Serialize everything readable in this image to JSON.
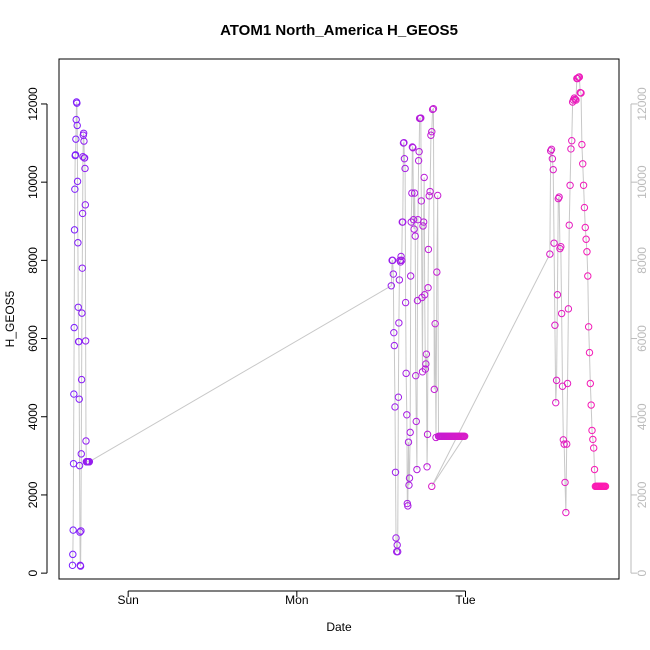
{
  "chart_data": {
    "type": "scatter",
    "title": "ATOM1 North_America H_GEOS5",
    "xlabel": "Date",
    "ylabel": "H_GEOS5",
    "x_ticks": [
      {
        "label": "Sun",
        "value": 0.0
      },
      {
        "label": "Mon",
        "value": 1.0
      },
      {
        "label": "Tue",
        "value": 2.0
      }
    ],
    "xlim": [
      -0.41,
      2.91
    ],
    "ylim": [
      -150,
      13150
    ],
    "y_ticks": [
      0,
      2000,
      4000,
      6000,
      8000,
      10000,
      12000
    ],
    "y_ticks_right": [
      0,
      2000,
      4000,
      6000,
      8000,
      10000,
      12000
    ],
    "grid": false,
    "line_color": "#c8c8c8",
    "color_start": "#7a1fff",
    "color_end": "#ff1ab0",
    "series": [
      {
        "x": [
          -0.33,
          -0.328,
          -0.326,
          -0.324,
          -0.322,
          -0.32,
          -0.318,
          -0.316,
          -0.314,
          -0.312,
          -0.31,
          -0.308,
          -0.306,
          -0.304,
          -0.302,
          -0.3,
          -0.298,
          -0.296,
          -0.294,
          -0.292,
          -0.29,
          -0.288,
          -0.286,
          -0.284,
          -0.282,
          -0.28,
          -0.278,
          -0.276,
          -0.274,
          -0.272,
          -0.27,
          -0.268,
          -0.266,
          -0.264,
          -0.262,
          -0.26,
          -0.258,
          -0.256,
          -0.254,
          -0.252,
          -0.25,
          -0.248,
          -0.246,
          -0.244,
          -0.242,
          -0.24,
          -0.238,
          -0.236,
          -0.234,
          -0.232,
          -0.23
        ],
        "y": [
          200,
          480,
          1100,
          2800,
          4580,
          6280,
          8780,
          9820,
          10680,
          10700,
          11100,
          11600,
          12050,
          12020,
          11450,
          10020,
          8450,
          6800,
          5920,
          5920,
          4450,
          2750,
          1050,
          200,
          180,
          1080,
          3050,
          4950,
          6650,
          7800,
          9200,
          10650,
          11200,
          11250,
          11050,
          10620,
          10620,
          10350,
          9420,
          5940,
          3380,
          2850,
          2850,
          2850,
          2850,
          2850,
          2850,
          2850,
          2850,
          2850,
          2850
        ]
      },
      {
        "x": [
          1.56,
          1.565,
          1.568,
          1.572,
          1.575,
          1.578,
          1.582,
          1.585,
          1.588,
          1.592,
          1.595,
          1.598,
          1.602,
          1.605,
          1.608,
          1.612,
          1.615,
          1.618,
          1.622,
          1.625,
          1.628,
          1.632,
          1.635,
          1.638,
          1.642,
          1.645,
          1.648,
          1.652,
          1.655,
          1.658,
          1.662,
          1.665,
          1.668,
          1.672,
          1.675,
          1.678,
          1.682,
          1.685,
          1.688,
          1.692,
          1.695,
          1.698,
          1.702,
          1.705,
          1.708,
          1.712,
          1.715,
          1.718,
          1.722,
          1.725,
          1.728,
          1.732,
          1.735,
          1.738,
          1.742,
          1.745,
          1.748,
          1.752,
          1.755,
          1.758,
          1.762,
          1.765,
          1.768,
          1.772,
          1.775,
          1.778
        ],
        "y": [
          7350,
          8000,
          8000,
          7650,
          6150,
          5820,
          4250,
          2580,
          900,
          550,
          720,
          550,
          4500,
          6400,
          7500,
          8000,
          7960,
          8100,
          8000,
          8980,
          8980,
          11000,
          11010,
          10600,
          10350,
          6920,
          5110,
          4050,
          1780,
          1720,
          3350,
          2250,
          2430,
          3600,
          7600,
          8980,
          9720,
          10900,
          10880,
          9040,
          8800,
          9720,
          8620,
          5050,
          3880,
          2650,
          6970,
          9040,
          10550,
          10780,
          11630,
          11630,
          11640,
          9520,
          7050,
          5150,
          8880,
          8980,
          10120,
          7120,
          5220,
          5350,
          5600,
          2720,
          3550,
          7300
        ]
      },
      {
        "x": [
          1.78,
          1.785,
          1.79,
          1.795,
          1.8,
          1.805,
          1.81,
          1.815,
          1.82,
          1.825,
          1.83,
          1.835,
          1.84,
          1.845,
          1.85,
          1.855,
          1.86,
          1.865,
          1.87,
          1.875,
          1.88,
          1.885,
          1.89,
          1.895,
          1.9,
          1.905,
          1.91,
          1.915,
          1.92,
          1.925,
          1.93,
          1.935,
          1.94,
          1.945,
          1.95,
          1.955,
          1.96,
          1.965,
          1.97,
          1.975,
          1.98,
          1.985,
          1.99,
          1.995
        ],
        "y": [
          8280,
          9650,
          9760,
          11200,
          11290,
          11860,
          11880,
          4700,
          6380,
          3470,
          7700,
          9660,
          3500,
          3500,
          3500,
          3500,
          3500,
          3500,
          3500,
          3500,
          3500,
          3500,
          3500,
          3500,
          3500,
          3500,
          3500,
          3500,
          3500,
          3500,
          3500,
          3500,
          3500,
          3500,
          3500,
          3500,
          3500,
          3500,
          3500,
          3500,
          3500,
          3500,
          3500,
          3500
        ]
      },
      {
        "x": [
          1.8,
          2.5,
          2.505,
          2.51,
          2.515,
          2.52,
          2.525,
          2.53,
          2.535,
          2.54,
          2.545,
          2.55,
          2.555,
          2.56,
          2.565,
          2.57,
          2.575,
          2.58,
          2.585,
          2.59,
          2.595,
          2.6,
          2.605,
          2.61,
          2.615,
          2.62,
          2.625,
          2.63,
          2.635,
          2.64,
          2.645,
          2.65,
          2.655,
          2.66,
          2.665,
          2.67,
          2.675,
          2.68,
          2.685,
          2.69,
          2.695,
          2.7,
          2.705,
          2.71,
          2.715,
          2.72,
          2.725,
          2.73,
          2.735,
          2.74,
          2.745,
          2.75,
          2.755,
          2.76,
          2.765,
          2.77,
          2.775,
          2.78,
          2.785,
          2.79,
          2.795,
          2.8,
          2.805,
          2.81,
          2.815,
          2.82,
          2.825,
          2.83
        ],
        "y": [
          2220,
          8160,
          10800,
          10840,
          10600,
          10320,
          8440,
          6340,
          4360,
          4930,
          7120,
          9580,
          9620,
          8300,
          8350,
          6640,
          4780,
          3410,
          3300,
          2320,
          1550,
          3300,
          4850,
          6760,
          8900,
          9920,
          10850,
          11060,
          12050,
          12100,
          12150,
          12120,
          12100,
          12650,
          12650,
          12680,
          12690,
          12290,
          12280,
          10960,
          10470,
          9920,
          9350,
          8840,
          8540,
          8220,
          7600,
          6300,
          5640,
          4850,
          4300,
          3650,
          3420,
          3200,
          2650,
          2220,
          2220,
          2220,
          2220,
          2220,
          2220,
          2220,
          2220,
          2220,
          2220,
          2220,
          2220,
          2220
        ]
      }
    ]
  }
}
